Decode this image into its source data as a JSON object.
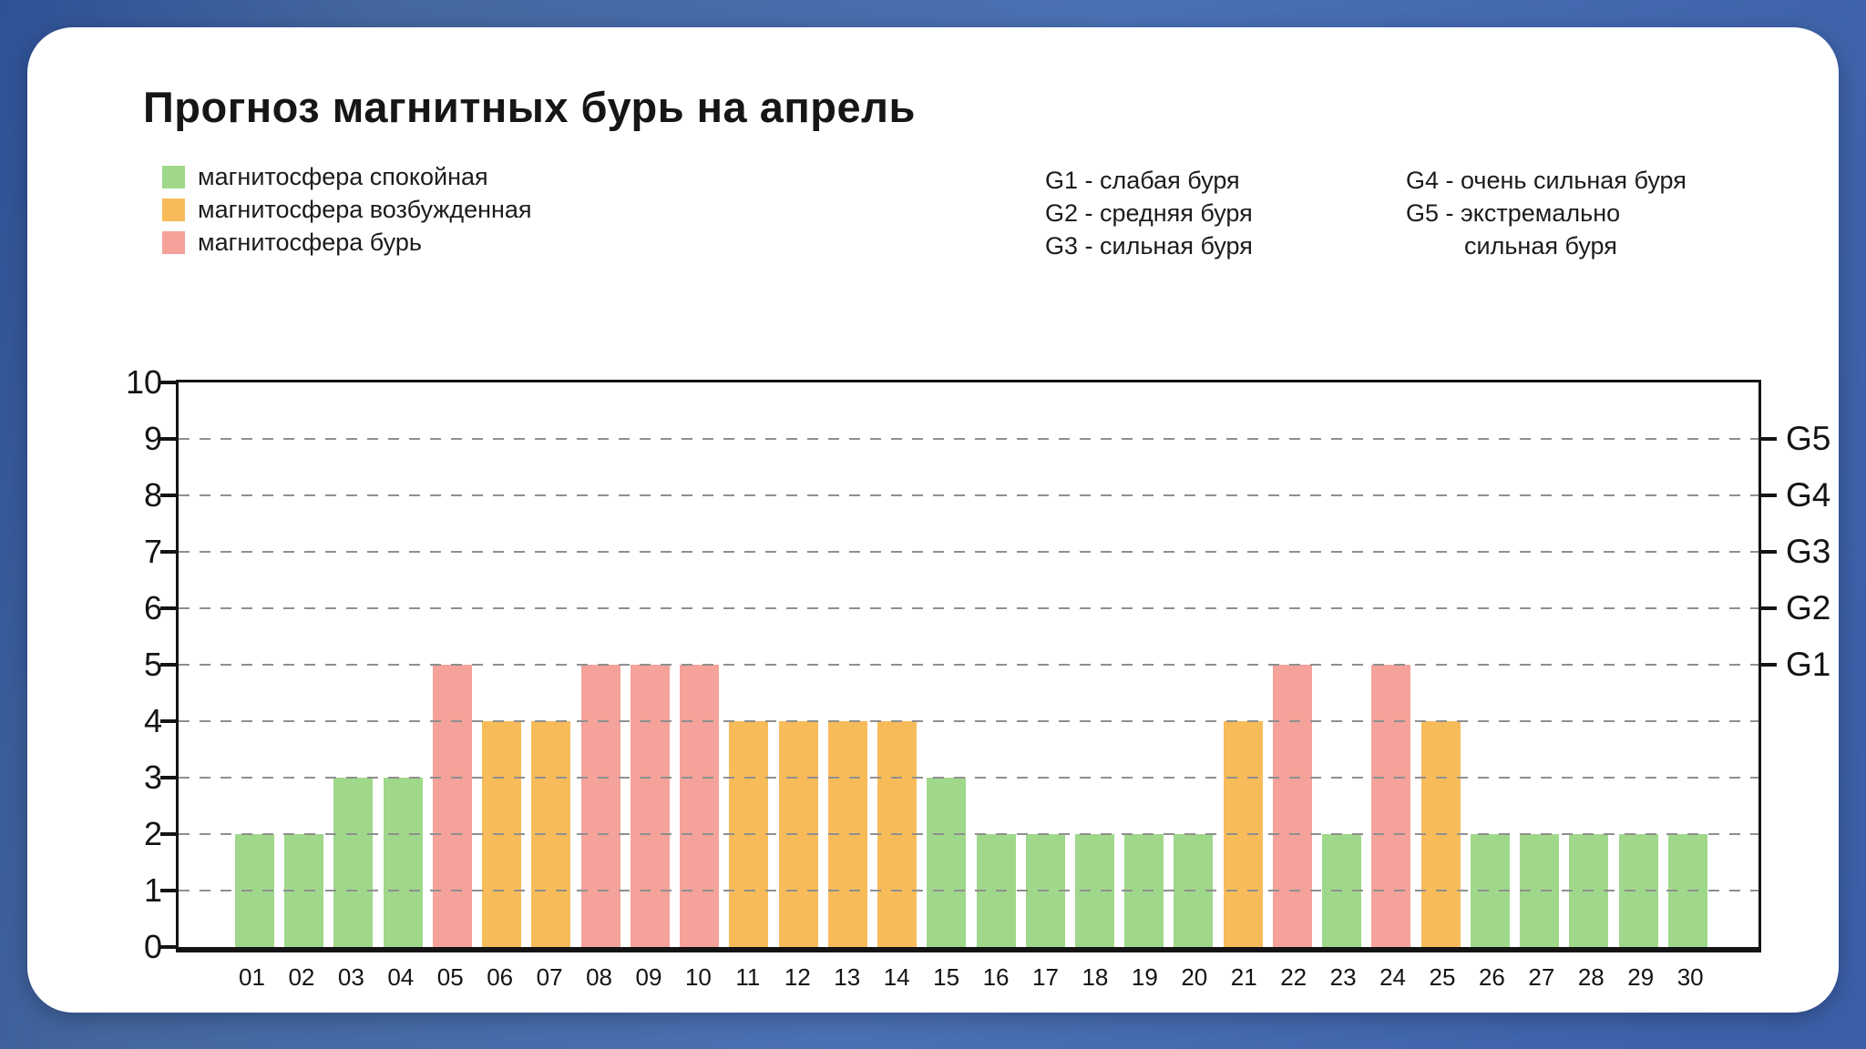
{
  "title": "Прогноз магнитных бурь на апрель",
  "colors": {
    "calm": "#9fd88b",
    "excited": "#f7bc59",
    "storm": "#f5a29a",
    "background_blue": "#4a71b5",
    "card_white": "#ffffff",
    "axis": "#141414",
    "grid": "#8f8f8f"
  },
  "legend": {
    "items": [
      {
        "label": "магнитосфера спокойная",
        "state": "calm",
        "color": "#9fd88b"
      },
      {
        "label": "магнитосфера возбужденная",
        "state": "excited",
        "color": "#f7bc59"
      },
      {
        "label": "магнитосфера бурь",
        "state": "storm",
        "color": "#f5a29a"
      }
    ]
  },
  "storm_scale": {
    "column1": [
      "G1 - слабая буря",
      "G2 - средняя буря",
      "G3 - сильная буря"
    ],
    "column2": [
      "G4 - очень сильная буря",
      "G5 - экстремально",
      "сильная буря"
    ]
  },
  "chart_data": {
    "type": "bar",
    "title": "Прогноз магнитных бурь на апрель",
    "xlabel": "",
    "ylabel": "",
    "ylim": [
      0,
      10
    ],
    "yticks": [
      0,
      1,
      2,
      3,
      4,
      5,
      6,
      7,
      8,
      9,
      10
    ],
    "grid": "horizontal-dashed",
    "legend_position": "top-left",
    "categories": [
      "01",
      "02",
      "03",
      "04",
      "05",
      "06",
      "07",
      "08",
      "09",
      "10",
      "11",
      "12",
      "13",
      "14",
      "15",
      "16",
      "17",
      "18",
      "19",
      "20",
      "21",
      "22",
      "23",
      "24",
      "25",
      "26",
      "27",
      "28",
      "29",
      "30"
    ],
    "values": [
      2,
      2,
      3,
      3,
      5,
      4,
      4,
      5,
      5,
      5,
      4,
      4,
      4,
      4,
      3,
      2,
      2,
      2,
      2,
      2,
      4,
      5,
      2,
      5,
      4,
      2,
      2,
      2,
      2,
      2
    ],
    "states": [
      "calm",
      "calm",
      "calm",
      "calm",
      "storm",
      "excited",
      "excited",
      "storm",
      "storm",
      "storm",
      "excited",
      "excited",
      "excited",
      "excited",
      "calm",
      "calm",
      "calm",
      "calm",
      "calm",
      "calm",
      "excited",
      "storm",
      "calm",
      "storm",
      "excited",
      "calm",
      "calm",
      "calm",
      "calm",
      "calm"
    ],
    "right_axis": [
      {
        "label": "G5",
        "value": 9
      },
      {
        "label": "G4",
        "value": 8
      },
      {
        "label": "G3",
        "value": 7
      },
      {
        "label": "G2",
        "value": 6
      },
      {
        "label": "G1",
        "value": 5
      }
    ]
  }
}
